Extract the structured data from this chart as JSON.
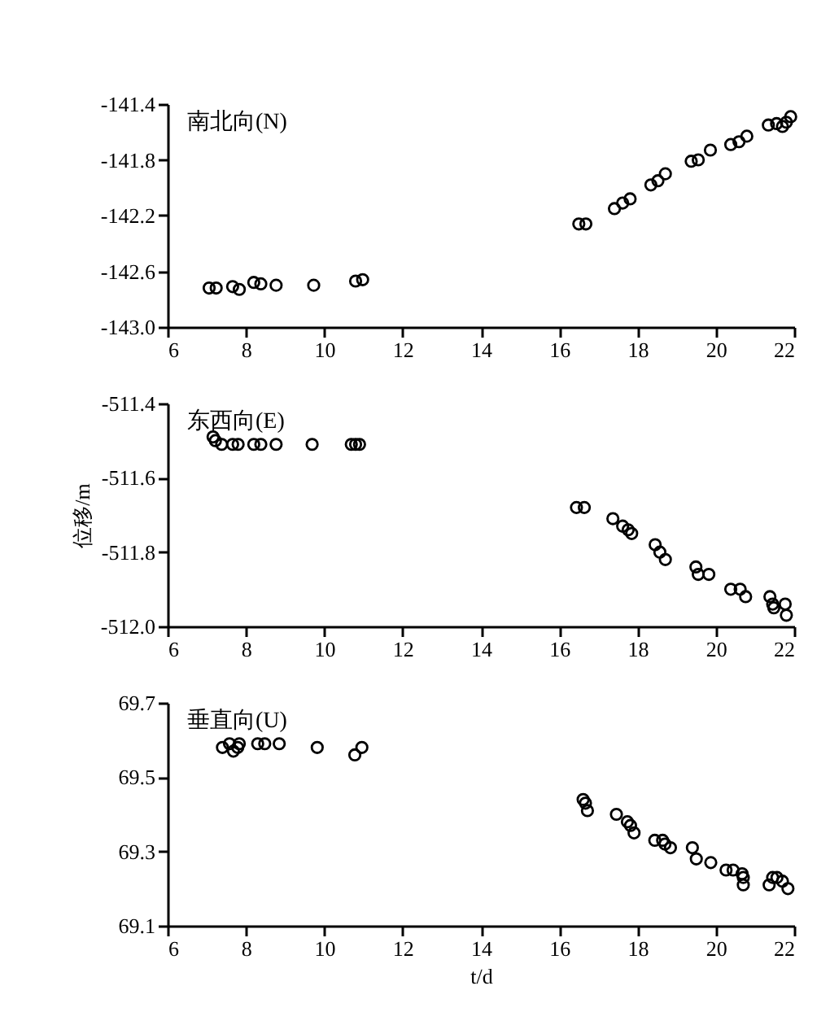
{
  "chart_data": [
    {
      "type": "scatter",
      "title": "南北向(N)",
      "xlim": [
        6,
        22
      ],
      "xticks": [
        6,
        8,
        10,
        12,
        14,
        16,
        18,
        20,
        22
      ],
      "ylim": [
        -143.0,
        -141.4
      ],
      "yticks": [
        {
          "value": -143.0,
          "label": "-143.0"
        },
        -142.6,
        -142.2,
        -141.8,
        -141.4
      ],
      "marker": "circle",
      "series": [
        {
          "color": "#000000",
          "x": [
            7.06,
            7.24,
            7.66,
            7.83,
            8.2,
            8.38,
            8.77,
            9.73,
            10.8,
            10.98,
            16.5,
            16.68,
            17.41,
            17.62,
            17.81,
            18.34,
            18.52,
            18.71,
            19.37,
            19.55,
            19.86,
            20.38,
            20.59,
            20.79,
            21.34,
            21.55,
            21.7,
            21.8,
            21.91
          ],
          "values": [
            -142.72,
            -142.72,
            -142.71,
            -142.73,
            -142.68,
            -142.69,
            -142.7,
            -142.7,
            -142.67,
            -142.66,
            -142.26,
            -142.26,
            -142.15,
            -142.11,
            -142.08,
            -141.98,
            -141.95,
            -141.9,
            -141.81,
            -141.8,
            -141.73,
            -141.69,
            -141.67,
            -141.63,
            -141.55,
            -141.54,
            -141.56,
            -141.53,
            -141.49
          ]
        }
      ]
    },
    {
      "type": "scatter",
      "title": "东西向(E)",
      "ylabel": "位移/m",
      "xlim": [
        6,
        22
      ],
      "xticks": [
        6,
        8,
        10,
        12,
        14,
        16,
        18,
        20,
        22
      ],
      "ylim": [
        -512.0,
        -511.4
      ],
      "yticks": [
        {
          "value": -512.0,
          "label": "-512.0"
        },
        -511.8,
        -511.6,
        -511.4
      ],
      "marker": "circle",
      "series": [
        {
          "color": "#000000",
          "x": [
            7.16,
            7.22,
            7.38,
            7.66,
            7.8,
            8.2,
            8.38,
            8.77,
            9.69,
            10.69,
            10.8,
            10.9,
            16.44,
            16.64,
            17.37,
            17.62,
            17.76,
            17.85,
            18.45,
            18.57,
            18.71,
            19.49,
            19.55,
            19.82,
            20.38,
            20.62,
            20.76,
            21.38,
            21.45,
            21.48,
            21.77,
            21.8
          ],
          "values": [
            -511.49,
            -511.5,
            -511.51,
            -511.51,
            -511.51,
            -511.51,
            -511.51,
            -511.51,
            -511.51,
            -511.51,
            -511.51,
            -511.51,
            -511.68,
            -511.68,
            -511.71,
            -511.73,
            -511.74,
            -511.75,
            -511.78,
            -511.8,
            -511.82,
            -511.84,
            -511.86,
            -511.86,
            -511.9,
            -511.9,
            -511.92,
            -511.92,
            -511.94,
            -511.95,
            -511.94,
            -511.97
          ]
        }
      ]
    },
    {
      "type": "scatter",
      "title": "垂直向(U)",
      "xlabel": "t/d",
      "xlim": [
        6,
        22
      ],
      "xticks": [
        6,
        8,
        10,
        12,
        14,
        16,
        18,
        20,
        22
      ],
      "ylim": [
        69.1,
        69.7
      ],
      "yticks": [
        69.1,
        69.3,
        69.5,
        69.7
      ],
      "marker": "circle",
      "series": [
        {
          "color": "#000000",
          "x": [
            7.4,
            7.58,
            7.68,
            7.79,
            7.83,
            8.3,
            8.48,
            8.85,
            9.82,
            10.78,
            10.96,
            16.61,
            16.67,
            16.72,
            17.46,
            17.74,
            17.82,
            17.91,
            18.44,
            18.64,
            18.7,
            18.84,
            19.4,
            19.5,
            19.87,
            20.26,
            20.44,
            20.67,
            20.7,
            20.7,
            21.36,
            21.45,
            21.56,
            21.7,
            21.84
          ],
          "values": [
            69.58,
            69.59,
            69.57,
            69.58,
            69.59,
            69.59,
            69.59,
            69.59,
            69.58,
            69.56,
            69.58,
            69.44,
            69.43,
            69.41,
            69.4,
            69.38,
            69.37,
            69.35,
            69.33,
            69.33,
            69.32,
            69.31,
            69.31,
            69.28,
            69.27,
            69.25,
            69.25,
            69.24,
            69.23,
            69.21,
            69.21,
            69.23,
            69.23,
            69.22,
            69.2
          ]
        }
      ]
    }
  ]
}
